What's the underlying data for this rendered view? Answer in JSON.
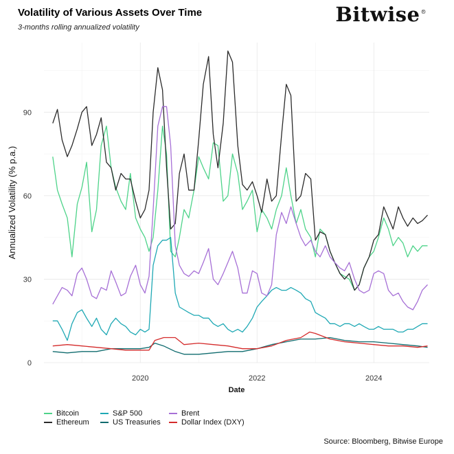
{
  "header": {
    "title": "Volatility of Various Assets Over Time",
    "subtitle": "3-months rolling annualized volatility",
    "logo_text": "Bitwise",
    "logo_mark": "®"
  },
  "footer": {
    "source": "Source: Bloomberg, Bitwise Europe"
  },
  "chart_data": {
    "type": "line",
    "title": "Volatility of Various Assets Over Time",
    "subtitle": "3-months rolling annualized volatility",
    "xlabel": "Date",
    "ylabel": "Annualized Volatility (% p.a.)",
    "xlim": [
      2018.35,
      2024.95
    ],
    "ylim": [
      0,
      115
    ],
    "xticks": [
      2020,
      2022,
      2024
    ],
    "yticks": [
      0,
      30,
      60,
      90
    ],
    "grid": true,
    "legend_position": "bottom",
    "series": [
      {
        "name": "Bitcoin",
        "color": "#4dd389",
        "x": [
          2018.5,
          2018.58,
          2018.66,
          2018.75,
          2018.83,
          2018.92,
          2019.0,
          2019.08,
          2019.17,
          2019.25,
          2019.33,
          2019.42,
          2019.5,
          2019.58,
          2019.67,
          2019.75,
          2019.83,
          2019.92,
          2020.0,
          2020.08,
          2020.15,
          2020.22,
          2020.3,
          2020.38,
          2020.45,
          2020.52,
          2020.6,
          2020.67,
          2020.75,
          2020.83,
          2020.92,
          2021.0,
          2021.08,
          2021.17,
          2021.25,
          2021.33,
          2021.42,
          2021.5,
          2021.58,
          2021.67,
          2021.75,
          2021.83,
          2021.92,
          2022.0,
          2022.08,
          2022.17,
          2022.25,
          2022.33,
          2022.42,
          2022.5,
          2022.58,
          2022.67,
          2022.75,
          2022.83,
          2022.92,
          2023.0,
          2023.08,
          2023.17,
          2023.25,
          2023.33,
          2023.42,
          2023.5,
          2023.58,
          2023.67,
          2023.75,
          2023.83,
          2023.92,
          2024.0,
          2024.08,
          2024.17,
          2024.25,
          2024.33,
          2024.42,
          2024.5,
          2024.58,
          2024.67,
          2024.75,
          2024.83,
          2024.92
        ],
        "y": [
          74,
          62,
          57,
          52,
          38,
          57,
          63,
          72,
          47,
          55,
          78,
          85,
          70,
          63,
          58,
          55,
          68,
          52,
          48,
          45,
          40,
          45,
          62,
          85,
          75,
          40,
          38,
          45,
          55,
          52,
          62,
          74,
          70,
          66,
          79,
          78,
          58,
          60,
          75,
          68,
          55,
          58,
          62,
          47,
          55,
          52,
          48,
          55,
          60,
          70,
          60,
          50,
          55,
          48,
          45,
          38,
          48,
          46,
          40,
          36,
          32,
          31,
          30,
          26,
          28,
          34,
          38,
          40,
          45,
          52,
          48,
          42,
          45,
          43,
          38,
          42,
          40,
          42,
          42
        ]
      },
      {
        "name": "Ethereum",
        "color": "#2a2a2a",
        "x": [
          2018.5,
          2018.58,
          2018.66,
          2018.75,
          2018.83,
          2018.92,
          2019.0,
          2019.08,
          2019.17,
          2019.25,
          2019.33,
          2019.42,
          2019.5,
          2019.58,
          2019.67,
          2019.75,
          2019.83,
          2019.92,
          2020.0,
          2020.08,
          2020.15,
          2020.22,
          2020.3,
          2020.38,
          2020.45,
          2020.52,
          2020.6,
          2020.67,
          2020.75,
          2020.83,
          2020.92,
          2021.0,
          2021.08,
          2021.17,
          2021.25,
          2021.33,
          2021.42,
          2021.5,
          2021.58,
          2021.67,
          2021.75,
          2021.83,
          2021.92,
          2022.0,
          2022.08,
          2022.17,
          2022.25,
          2022.33,
          2022.42,
          2022.5,
          2022.58,
          2022.67,
          2022.75,
          2022.83,
          2022.92,
          2023.0,
          2023.08,
          2023.17,
          2023.25,
          2023.33,
          2023.42,
          2023.5,
          2023.58,
          2023.67,
          2023.75,
          2023.83,
          2023.92,
          2024.0,
          2024.08,
          2024.17,
          2024.25,
          2024.33,
          2024.42,
          2024.5,
          2024.58,
          2024.67,
          2024.75,
          2024.83,
          2024.92
        ],
        "y": [
          86,
          91,
          80,
          74,
          78,
          84,
          90,
          92,
          78,
          82,
          88,
          72,
          70,
          62,
          68,
          66,
          66,
          58,
          52,
          55,
          62,
          90,
          106,
          98,
          70,
          48,
          50,
          68,
          75,
          62,
          62,
          80,
          100,
          110,
          82,
          70,
          86,
          112,
          108,
          78,
          64,
          62,
          65,
          60,
          54,
          66,
          58,
          60,
          82,
          100,
          96,
          58,
          60,
          68,
          66,
          44,
          47,
          46,
          40,
          36,
          32,
          30,
          32,
          26,
          28,
          34,
          38,
          44,
          46,
          56,
          52,
          48,
          56,
          52,
          49,
          52,
          50,
          51,
          53
        ]
      },
      {
        "name": "S&P 500",
        "color": "#1ea8b4",
        "x": [
          2018.5,
          2018.58,
          2018.66,
          2018.75,
          2018.83,
          2018.92,
          2019.0,
          2019.08,
          2019.17,
          2019.25,
          2019.33,
          2019.42,
          2019.5,
          2019.58,
          2019.67,
          2019.75,
          2019.83,
          2019.92,
          2020.0,
          2020.08,
          2020.15,
          2020.22,
          2020.3,
          2020.38,
          2020.45,
          2020.52,
          2020.6,
          2020.67,
          2020.75,
          2020.83,
          2020.92,
          2021.0,
          2021.08,
          2021.17,
          2021.25,
          2021.33,
          2021.42,
          2021.5,
          2021.58,
          2021.67,
          2021.75,
          2021.83,
          2021.92,
          2022.0,
          2022.08,
          2022.17,
          2022.25,
          2022.33,
          2022.42,
          2022.5,
          2022.58,
          2022.67,
          2022.75,
          2022.83,
          2022.92,
          2023.0,
          2023.08,
          2023.17,
          2023.25,
          2023.33,
          2023.42,
          2023.5,
          2023.58,
          2023.67,
          2023.75,
          2023.83,
          2023.92,
          2024.0,
          2024.08,
          2024.17,
          2024.25,
          2024.33,
          2024.42,
          2024.5,
          2024.58,
          2024.67,
          2024.75,
          2024.83,
          2024.92
        ],
        "y": [
          15,
          15,
          12,
          8,
          14,
          18,
          19,
          16,
          13,
          16,
          12,
          10,
          14,
          16,
          14,
          13,
          11,
          10,
          12,
          11,
          12,
          35,
          42,
          44,
          44,
          45,
          25,
          20,
          19,
          18,
          17,
          17,
          16,
          16,
          14,
          13,
          14,
          12,
          11,
          12,
          11,
          13,
          16,
          20,
          22,
          24,
          26,
          27,
          26,
          26,
          27,
          26,
          25,
          23,
          22,
          18,
          17,
          16,
          14,
          14,
          13,
          14,
          14,
          13,
          14,
          13,
          12,
          12,
          13,
          12,
          12,
          12,
          11,
          11,
          12,
          12,
          13,
          14,
          14
        ]
      },
      {
        "name": "US Treasuries",
        "color": "#0f6b6e",
        "x": [
          2018.5,
          2018.75,
          2019.0,
          2019.25,
          2019.5,
          2019.75,
          2020.0,
          2020.15,
          2020.25,
          2020.4,
          2020.6,
          2020.75,
          2021.0,
          2021.25,
          2021.5,
          2021.75,
          2022.0,
          2022.25,
          2022.5,
          2022.75,
          2023.0,
          2023.25,
          2023.5,
          2023.75,
          2024.0,
          2024.25,
          2024.5,
          2024.75,
          2024.92
        ],
        "y": [
          4,
          3.5,
          4,
          4,
          5,
          5,
          5,
          5.5,
          7,
          6,
          4,
          3,
          3,
          3.5,
          4,
          4,
          5,
          6.5,
          7.5,
          8.5,
          8.5,
          9,
          8,
          7.5,
          7.5,
          7,
          6.5,
          6,
          5.5
        ]
      },
      {
        "name": "Brent",
        "color": "#a66fd6",
        "x": [
          2018.5,
          2018.58,
          2018.66,
          2018.75,
          2018.83,
          2018.92,
          2019.0,
          2019.08,
          2019.17,
          2019.25,
          2019.33,
          2019.42,
          2019.5,
          2019.58,
          2019.67,
          2019.75,
          2019.83,
          2019.92,
          2020.0,
          2020.08,
          2020.15,
          2020.22,
          2020.3,
          2020.38,
          2020.45,
          2020.52,
          2020.6,
          2020.67,
          2020.75,
          2020.83,
          2020.92,
          2021.0,
          2021.08,
          2021.17,
          2021.25,
          2021.33,
          2021.42,
          2021.5,
          2021.58,
          2021.67,
          2021.75,
          2021.83,
          2021.92,
          2022.0,
          2022.08,
          2022.17,
          2022.25,
          2022.33,
          2022.42,
          2022.5,
          2022.58,
          2022.67,
          2022.75,
          2022.83,
          2022.92,
          2023.0,
          2023.08,
          2023.17,
          2023.25,
          2023.33,
          2023.42,
          2023.5,
          2023.58,
          2023.67,
          2023.75,
          2023.83,
          2023.92,
          2024.0,
          2024.08,
          2024.17,
          2024.25,
          2024.33,
          2024.42,
          2024.5,
          2024.58,
          2024.67,
          2024.75,
          2024.83,
          2024.92
        ],
        "y": [
          21,
          24,
          27,
          26,
          24,
          32,
          34,
          30,
          24,
          23,
          27,
          26,
          33,
          29,
          24,
          25,
          31,
          35,
          28,
          25,
          31,
          55,
          85,
          92,
          92,
          78,
          42,
          35,
          32,
          31,
          33,
          32,
          36,
          41,
          30,
          28,
          32,
          36,
          40,
          34,
          25,
          25,
          33,
          32,
          25,
          24,
          28,
          46,
          54,
          50,
          56,
          50,
          45,
          42,
          44,
          40,
          38,
          42,
          38,
          36,
          34,
          33,
          36,
          30,
          26,
          25,
          26,
          32,
          33,
          32,
          26,
          24,
          25,
          22,
          20,
          19,
          22,
          26,
          28
        ]
      },
      {
        "name": "Dollar Index (DXY)",
        "color": "#d42a2a",
        "x": [
          2018.5,
          2018.75,
          2019.0,
          2019.25,
          2019.5,
          2019.75,
          2020.0,
          2020.15,
          2020.25,
          2020.4,
          2020.6,
          2020.75,
          2021.0,
          2021.25,
          2021.5,
          2021.75,
          2022.0,
          2022.25,
          2022.5,
          2022.75,
          2022.9,
          2023.0,
          2023.25,
          2023.5,
          2023.75,
          2024.0,
          2024.25,
          2024.5,
          2024.75,
          2024.92
        ],
        "y": [
          6,
          6.5,
          6,
          5.5,
          5,
          4.5,
          4.5,
          4.5,
          8,
          9,
          9,
          6.5,
          7,
          6.5,
          6,
          5,
          5,
          6,
          8,
          9,
          11,
          10.5,
          8.5,
          7.5,
          7,
          6.5,
          6,
          6,
          5.5,
          6
        ]
      }
    ]
  }
}
